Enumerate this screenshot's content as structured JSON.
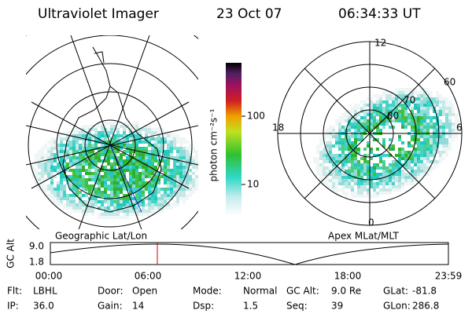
{
  "header": {
    "instrument": "Ultraviolet Imager",
    "date": "23 Oct 07",
    "time": "06:34:33 UT"
  },
  "left_panel": {
    "label": "Geographic Lat/Lon"
  },
  "right_panel": {
    "label": "Apex MLat/MLT",
    "mlt_labels": [
      "12",
      "18",
      "6",
      "0"
    ],
    "lat_labels": [
      "60",
      "70",
      "80"
    ]
  },
  "colorbar": {
    "label": "photon cm⁻²s⁻¹",
    "ticks": [
      "100",
      "10"
    ]
  },
  "timeline": {
    "y_label": "GC Alt",
    "y_ticks": [
      "9.0",
      "1.8"
    ],
    "x_ticks": [
      "00:00",
      "06:00",
      "12:00",
      "18:00",
      "23:59"
    ]
  },
  "footer": [
    [
      {
        "label": "Flt:",
        "value": "LBHL"
      },
      {
        "label": "Door:",
        "value": "Open"
      },
      {
        "label": "Mode:",
        "value": "Normal"
      },
      {
        "label": "GC Alt:",
        "value": "9.0 Re"
      },
      {
        "label": "GLat:",
        "value": "-81.8"
      }
    ],
    [
      {
        "label": "IP:",
        "value": "36.0"
      },
      {
        "label": "Gain:",
        "value": "14"
      },
      {
        "label": "Dsp:",
        "value": "1.5"
      },
      {
        "label": "Seq:",
        "value": "39"
      },
      {
        "label": "GLon:",
        "value": "286.8"
      }
    ]
  ]
}
